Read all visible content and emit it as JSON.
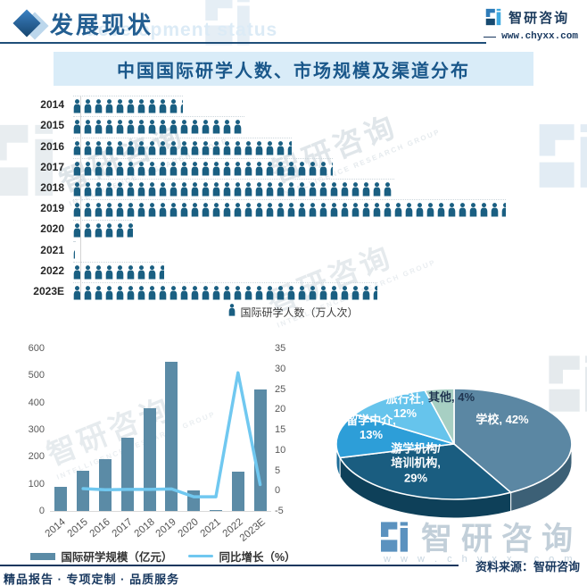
{
  "header": {
    "section_title": "发展现状",
    "section_subtitle_ghost": "development status",
    "brand_name": "智研咨询",
    "brand_site": "www.chyxx.com"
  },
  "banner_title": "中国国际研学人数、市场规模及渠道分布",
  "chart_data": [
    {
      "id": "pictogram_people",
      "type": "bar",
      "variant": "pictogram",
      "legend": "国际研学人数（万人次）",
      "categories": [
        "2014",
        "2015",
        "2016",
        "2017",
        "2018",
        "2019",
        "2020",
        "2021",
        "2022",
        "2023E"
      ],
      "values_icons": [
        10.3,
        16,
        20.5,
        24.3,
        30,
        40.5,
        5.8,
        0.25,
        8.7,
        28.5
      ]
    },
    {
      "id": "scale_and_growth",
      "type": "bar",
      "variant": "bar+line",
      "categories": [
        "2014",
        "2015",
        "2016",
        "2017",
        "2018",
        "2019",
        "2020",
        "2021",
        "2022",
        "2023E"
      ],
      "series": [
        {
          "name": "国际研学规模（亿元）",
          "type": "bar",
          "axis": "left",
          "values": [
            90,
            150,
            190,
            270,
            380,
            550,
            75,
            5,
            145,
            450
          ]
        },
        {
          "name": "同比增长（%）",
          "type": "line",
          "axis": "right",
          "values": [
            null,
            0.5,
            0.2,
            0.3,
            0.3,
            0.4,
            -1.5,
            -1.5,
            29,
            1.5
          ]
        }
      ],
      "left_axis": {
        "min": 0,
        "max": 600,
        "step": 100
      },
      "right_axis": {
        "min": -5,
        "max": 35,
        "step": 5
      },
      "grid": false,
      "legend_position": "bottom"
    },
    {
      "id": "channel_share",
      "type": "pie",
      "variant": "3d",
      "label_format": "{label}, {value}%",
      "slices": [
        {
          "label": "学校",
          "value": 42
        },
        {
          "label": "游学机构/培训机构",
          "value": 29
        },
        {
          "label": "留学中介",
          "value": 13
        },
        {
          "label": "旅行社",
          "value": 12
        },
        {
          "label": "其他",
          "value": 4
        }
      ]
    }
  ],
  "footer": {
    "source": "资料来源：智研咨询",
    "tagline": "精品报告 · 专项定制 · 品质服务"
  },
  "watermarks": {
    "brand": "智研咨询",
    "brand_en": "INTELLIGENCE RESEARCH GROUP",
    "site_ghost": "w w w . c h y x x . c o m"
  },
  "colors": {
    "accent_navy": "#1f4e79",
    "banner_bg": "#d9ecf8",
    "banner_text": "#19578a",
    "person_icon": "#1a5f82",
    "bar": "#5b8ba6",
    "line": "#70c8f0",
    "pie": [
      "#5b87a3",
      "#1a5d80",
      "#2d9ed8",
      "#66c4ec",
      "#a7cfc3"
    ],
    "pie_sides": [
      "#3c6076",
      "#0e4059",
      "#1c6d99"
    ],
    "text_dark": "#17375e",
    "axis_text": "#595959"
  }
}
